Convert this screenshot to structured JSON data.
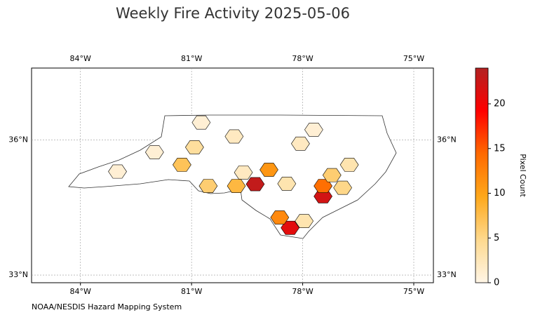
{
  "chart_data": {
    "type": "choropleth",
    "title": "Weekly Fire Activity 2025-05-06",
    "source": "NOAA/NESDIS Hazard Mapping System",
    "colorbar_label": "Pixel Count",
    "xlim": [
      -85.32,
      -74.47
    ],
    "ylim": [
      32.83,
      37.6
    ],
    "xticks": [
      {
        "value": -84,
        "label": "84°W"
      },
      {
        "value": -81,
        "label": "81°W"
      },
      {
        "value": -78,
        "label": "78°W"
      },
      {
        "value": -75,
        "label": "75°W"
      }
    ],
    "yticks": [
      {
        "value": 33,
        "label": "33°N"
      },
      {
        "value": 36,
        "label": "36°N"
      }
    ],
    "grid": true,
    "clim": [
      0,
      24
    ],
    "cticks": [
      0,
      5,
      10,
      15,
      20
    ],
    "colormap": [
      "#fff5e6",
      "#fed98e",
      "#fea81b",
      "#ff6a00",
      "#ff0000",
      "#b22222"
    ],
    "regions": {
      "lon": [
        -79.28,
        -77.45,
        -78.34,
        -78.62,
        -77.45,
        -78.91,
        -79.79,
        -81.26,
        -80.55,
        -80.92,
        -76.74,
        -77.21,
        -76.92,
        -78.43,
        -77.96,
        -79.85,
        -80.74,
        -78.06,
        -79.6,
        -82.0,
        -77.7,
        -83.0
      ],
      "lat": [
        35.02,
        34.75,
        34.05,
        34.28,
        34.98,
        35.34,
        34.98,
        35.45,
        34.98,
        35.84,
        35.45,
        35.22,
        34.94,
        35.03,
        34.2,
        36.08,
        36.39,
        35.92,
        35.28,
        35.73,
        36.23,
        35.3
      ],
      "values": [
        23,
        22,
        21,
        12,
        14,
        11,
        8,
        7,
        6,
        4,
        3,
        6,
        5,
        3,
        3,
        2,
        1,
        2,
        2,
        1,
        1,
        1
      ]
    }
  }
}
